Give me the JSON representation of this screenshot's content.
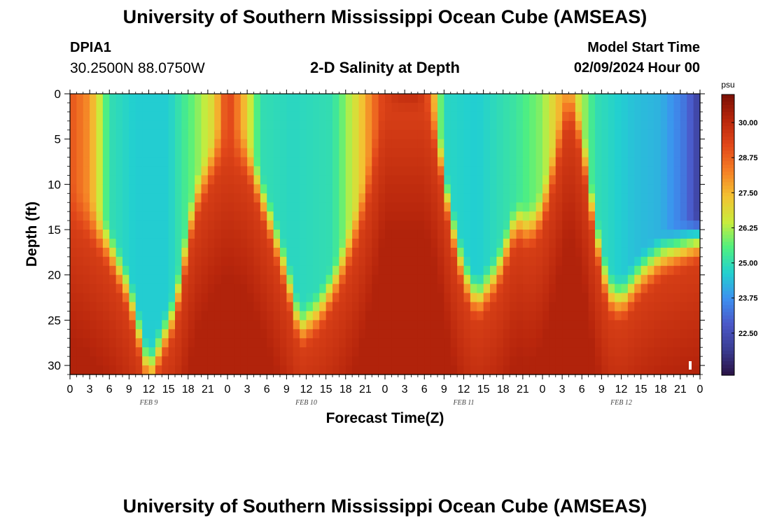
{
  "header": {
    "title_top": "University of Southern Mississippi Ocean Cube (AMSEAS)",
    "title_bottom": "University of Southern Mississippi Ocean Cube (AMSEAS)",
    "station_id": "DPIA1",
    "station_coords": "30.2500N  88.0750W",
    "plot_title": "2-D Salinity at Depth",
    "model_start_label": "Model Start Time",
    "model_start_value": "02/09/2024 Hour 00"
  },
  "chart_data": {
    "type": "heatmap",
    "title": "2-D Salinity at Depth",
    "xlabel": "Forecast Time(Z)",
    "ylabel": "Depth (ft)",
    "xlim": [
      0,
      96
    ],
    "ylim": [
      0,
      31
    ],
    "x_major_step_hours": 3,
    "x_tick_labels": [
      "0",
      "3",
      "6",
      "9",
      "12",
      "15",
      "18",
      "21",
      "0",
      "3",
      "6",
      "9",
      "12",
      "15",
      "18",
      "21",
      "0",
      "3",
      "6",
      "9",
      "12",
      "15",
      "18",
      "21",
      "0",
      "3",
      "6",
      "9",
      "12",
      "15",
      "18",
      "21",
      "0"
    ],
    "day_labels": [
      {
        "label": "FEB 9",
        "hour": 12
      },
      {
        "label": "FEB 10",
        "hour": 36
      },
      {
        "label": "FEB 11",
        "hour": 60
      },
      {
        "label": "FEB 12",
        "hour": 84
      }
    ],
    "y_ticks": [
      0,
      5,
      10,
      15,
      20,
      25,
      30
    ],
    "colorbar": {
      "unit": "psu",
      "min": 21.0,
      "max": 31.0,
      "ticks": [
        "30.00",
        "28.75",
        "27.50",
        "26.25",
        "25.00",
        "23.75",
        "22.50"
      ],
      "colors": [
        "#2a1245",
        "#3a3c92",
        "#4b58c8",
        "#3d90f0",
        "#22d0d0",
        "#4ff080",
        "#c9ec3c",
        "#f3c232",
        "#f57f25",
        "#e2481a",
        "#b8260c",
        "#7a0f05"
      ]
    },
    "cells_x": 96,
    "cells_y": 31,
    "boundary_depth_ft": [
      {
        "h": 0,
        "d": 12
      },
      {
        "h": 3,
        "d": 14
      },
      {
        "h": 6,
        "d": 17
      },
      {
        "h": 9,
        "d": 22
      },
      {
        "h": 12,
        "d": 31
      },
      {
        "h": 16,
        "d": 24
      },
      {
        "h": 19,
        "d": 12
      },
      {
        "h": 22,
        "d": 7
      },
      {
        "h": 24,
        "d": 5
      },
      {
        "h": 27,
        "d": 7
      },
      {
        "h": 30,
        "d": 13
      },
      {
        "h": 33,
        "d": 20
      },
      {
        "h": 35,
        "d": 26
      },
      {
        "h": 38,
        "d": 24
      },
      {
        "h": 41,
        "d": 20
      },
      {
        "h": 44,
        "d": 14
      },
      {
        "h": 46,
        "d": 8
      },
      {
        "h": 48,
        "d": 0
      },
      {
        "h": 54,
        "d": 0
      },
      {
        "h": 56,
        "d": 5
      },
      {
        "h": 58,
        "d": 14
      },
      {
        "h": 60,
        "d": 20
      },
      {
        "h": 62,
        "d": 23
      },
      {
        "h": 65,
        "d": 20
      },
      {
        "h": 68,
        "d": 14
      },
      {
        "h": 70,
        "d": 15
      },
      {
        "h": 72,
        "d": 13
      },
      {
        "h": 74,
        "d": 7
      },
      {
        "h": 76,
        "d": 0
      },
      {
        "h": 78,
        "d": 5
      },
      {
        "h": 80,
        "d": 15
      },
      {
        "h": 82,
        "d": 22
      },
      {
        "h": 84,
        "d": 23
      },
      {
        "h": 87,
        "d": 20
      },
      {
        "h": 90,
        "d": 18
      },
      {
        "h": 93,
        "d": 17
      },
      {
        "h": 96,
        "d": 16
      }
    ],
    "surface_salinity_psu": [
      {
        "h": 0,
        "v": 29.0
      },
      {
        "h": 3,
        "v": 28.0
      },
      {
        "h": 6,
        "v": 25.0
      },
      {
        "h": 10,
        "v": 24.6
      },
      {
        "h": 15,
        "v": 24.6
      },
      {
        "h": 19,
        "v": 25.8
      },
      {
        "h": 22,
        "v": 27.0
      },
      {
        "h": 24,
        "v": 29.5
      },
      {
        "h": 26,
        "v": 28.0
      },
      {
        "h": 29,
        "v": 25.0
      },
      {
        "h": 34,
        "v": 24.8
      },
      {
        "h": 40,
        "v": 25.0
      },
      {
        "h": 44,
        "v": 27.0
      },
      {
        "h": 47,
        "v": 29.0
      },
      {
        "h": 50,
        "v": 30.5
      },
      {
        "h": 53,
        "v": 30.6
      },
      {
        "h": 55,
        "v": 28.5
      },
      {
        "h": 57,
        "v": 24.8
      },
      {
        "h": 62,
        "v": 24.6
      },
      {
        "h": 68,
        "v": 25.2
      },
      {
        "h": 72,
        "v": 26.0
      },
      {
        "h": 75,
        "v": 27.8
      },
      {
        "h": 77,
        "v": 27.0
      },
      {
        "h": 80,
        "v": 25.0
      },
      {
        "h": 86,
        "v": 24.4
      },
      {
        "h": 90,
        "v": 24.2
      },
      {
        "h": 94,
        "v": 23.2
      },
      {
        "h": 96,
        "v": 22.0
      }
    ]
  }
}
